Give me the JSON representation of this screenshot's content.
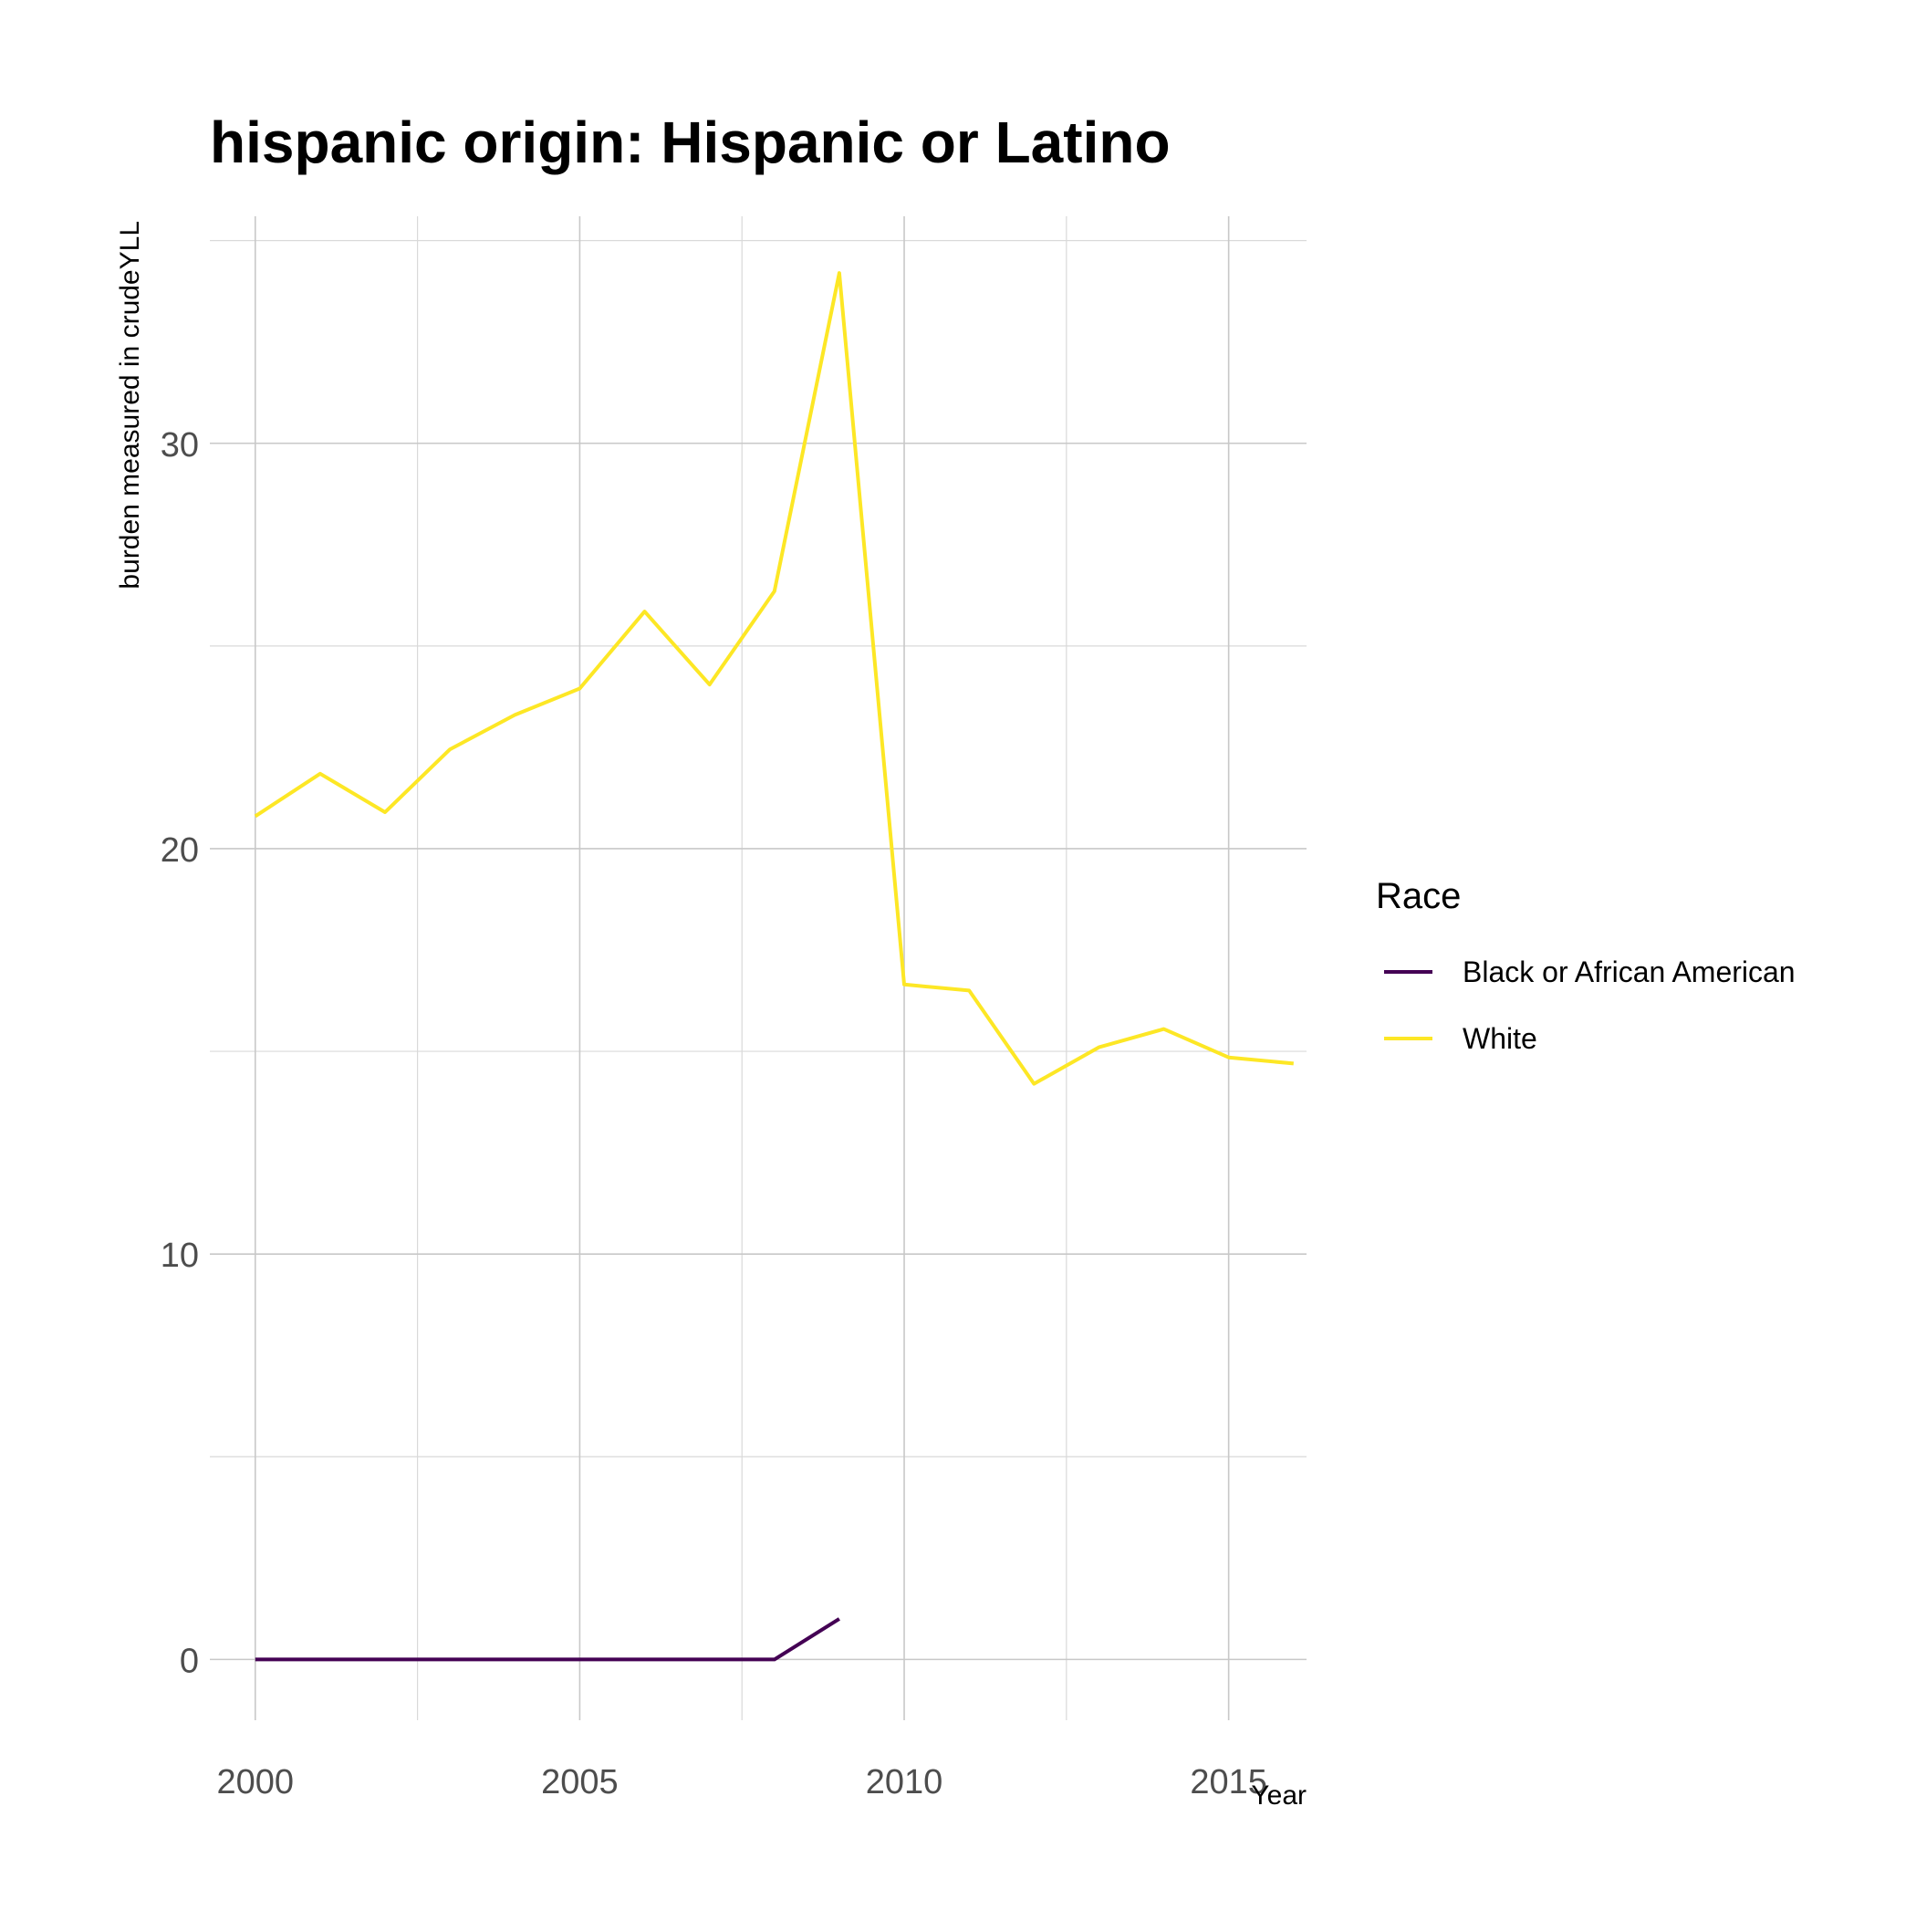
{
  "chart_data": {
    "type": "line",
    "title": "hispanic origin: Hispanic or Latino",
    "xlabel": "Year",
    "ylabel": "burden measured in crudeYLL",
    "xlim": [
      1999.3,
      2016.2
    ],
    "ylim": [
      -1.5,
      35.6
    ],
    "x_ticks": [
      2000,
      2005,
      2010,
      2015
    ],
    "y_ticks": [
      0,
      10,
      20,
      30
    ],
    "grid": true,
    "legend": {
      "title": "Race",
      "position": "right"
    },
    "series": [
      {
        "name": "Black or African American",
        "color": "#440154",
        "x": [
          2000,
          2001,
          2002,
          2003,
          2004,
          2005,
          2006,
          2007,
          2008,
          2009
        ],
        "values": [
          0,
          0,
          0,
          0,
          0,
          0,
          0,
          0,
          0,
          1.0
        ]
      },
      {
        "name": "White",
        "color": "#fde725",
        "x": [
          2000,
          2001,
          2002,
          2003,
          2004,
          2005,
          2006,
          2007,
          2008,
          2009,
          2010,
          2011,
          2012,
          2013,
          2014,
          2015,
          2016
        ],
        "values": [
          20.8,
          21.85,
          20.9,
          22.45,
          23.3,
          23.95,
          25.85,
          24.05,
          26.35,
          34.2,
          16.65,
          16.5,
          14.2,
          15.1,
          15.55,
          14.85,
          14.7
        ]
      }
    ]
  }
}
